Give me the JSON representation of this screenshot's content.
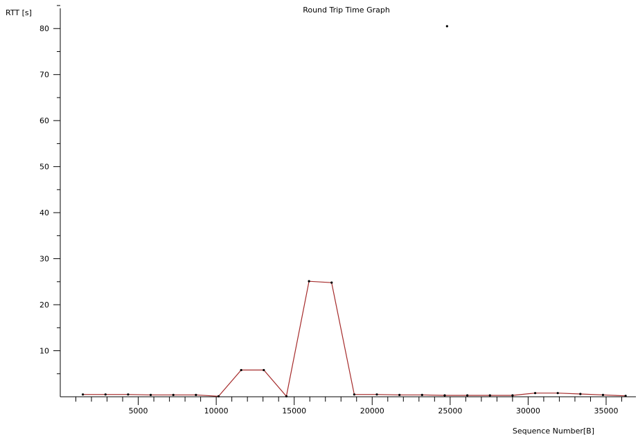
{
  "chart_data": {
    "type": "line",
    "title": "Round Trip Time Graph",
    "xlabel": "Sequence Number[B]",
    "ylabel": "RTT [s]",
    "xlim": [
      0,
      37000
    ],
    "ylim": [
      0,
      85
    ],
    "x_ticks": [
      5000,
      10000,
      15000,
      20000,
      25000,
      30000,
      35000
    ],
    "x_tick_labels": [
      "5000",
      "10000",
      "15000",
      "20000",
      "25000",
      "30000",
      "35000"
    ],
    "x_minor_step": 1000,
    "y_ticks": [
      10,
      20,
      30,
      40,
      50,
      60,
      70,
      80
    ],
    "y_tick_labels": [
      "10",
      "20",
      "30",
      "40",
      "50",
      "60",
      "70",
      "80"
    ],
    "y_minor_step": 5,
    "grid": false,
    "legend": "none",
    "series": [
      {
        "color": "#a52a2a",
        "points": [
          [
            1450,
            0.5
          ],
          [
            2900,
            0.5
          ],
          [
            4350,
            0.5
          ],
          [
            5800,
            0.4
          ],
          [
            7250,
            0.4
          ],
          [
            8700,
            0.4
          ],
          [
            10150,
            0.1
          ],
          [
            11600,
            5.8
          ],
          [
            13050,
            5.8
          ],
          [
            14500,
            0.1
          ],
          [
            15950,
            25.1
          ],
          [
            17400,
            24.8
          ],
          [
            18850,
            0.5
          ],
          [
            20300,
            0.5
          ],
          [
            21750,
            0.4
          ],
          [
            23200,
            0.4
          ],
          [
            24650,
            0.3
          ],
          [
            26100,
            0.3
          ],
          [
            27550,
            0.3
          ],
          [
            29000,
            0.3
          ],
          [
            30450,
            0.8
          ],
          [
            31900,
            0.8
          ],
          [
            33350,
            0.6
          ],
          [
            34800,
            0.4
          ],
          [
            36250,
            0.2
          ]
        ]
      }
    ],
    "outlier_points": [
      [
        24800,
        80.5
      ]
    ]
  }
}
